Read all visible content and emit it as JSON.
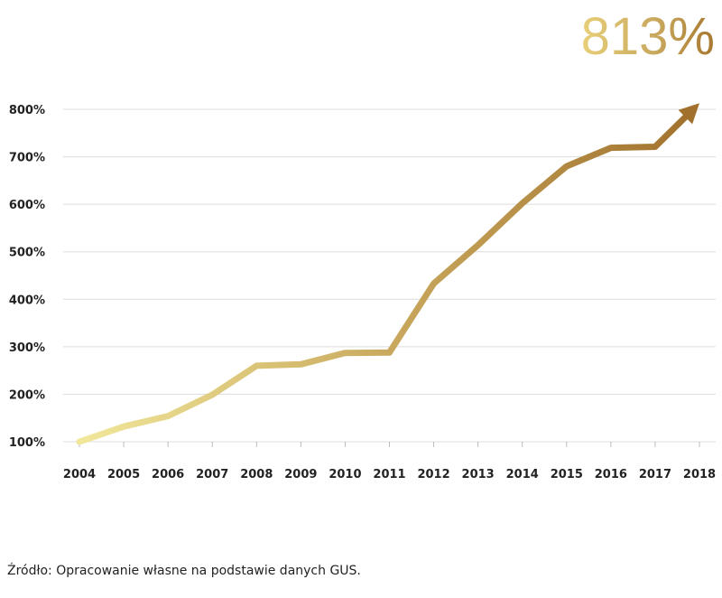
{
  "headline_value": "813%",
  "source_note": "Źródło: Opracowanie własne na podstawie danych GUS.",
  "chart_data": {
    "type": "line",
    "x": [
      "2004",
      "2005",
      "2006",
      "2007",
      "2008",
      "2009",
      "2010",
      "2011",
      "2012",
      "2013",
      "2014",
      "2015",
      "2016",
      "2017",
      "2018"
    ],
    "series": [
      {
        "values": [
          100,
          132,
          154,
          199,
          260,
          263,
          287,
          288,
          433,
          514,
          602,
          680,
          719,
          721,
          813
        ]
      }
    ],
    "ylim": [
      100,
      800
    ],
    "y_ticks": [
      "100%",
      "200%",
      "300%",
      "400%",
      "500%",
      "600%",
      "700%",
      "800%"
    ],
    "grid": true,
    "end_marker": "arrow",
    "colors": {
      "line_start": "#f1e79a",
      "line_mid": "#c9a95e",
      "line_end": "#a0702c",
      "grid": "#dddddd"
    }
  }
}
